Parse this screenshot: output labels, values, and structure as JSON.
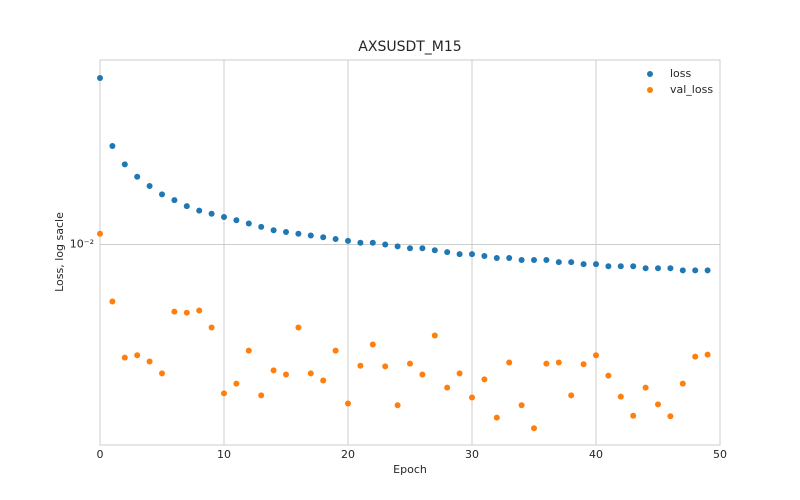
{
  "chart_data": {
    "type": "scatter",
    "title": "AXSUSDT_M15",
    "xlabel": "Epoch",
    "ylabel": "Loss, log sacle",
    "x": [
      0,
      1,
      2,
      3,
      4,
      5,
      6,
      7,
      8,
      9,
      10,
      11,
      12,
      13,
      14,
      15,
      16,
      17,
      18,
      19,
      20,
      21,
      22,
      23,
      24,
      25,
      26,
      27,
      28,
      29,
      30,
      31,
      32,
      33,
      34,
      35,
      36,
      37,
      38,
      39,
      40,
      41,
      42,
      43,
      44,
      45,
      46,
      47,
      48,
      49
    ],
    "series": [
      {
        "name": "loss",
        "color": "#1f77b4",
        "values": [
          0.0245,
          0.017,
          0.0154,
          0.0144,
          0.0137,
          0.0131,
          0.0127,
          0.0123,
          0.012,
          0.0118,
          0.0116,
          0.0114,
          0.0112,
          0.011,
          0.0108,
          0.0107,
          0.0106,
          0.0105,
          0.0104,
          0.0103,
          0.0102,
          0.0101,
          0.0101,
          0.01,
          0.0099,
          0.0098,
          0.0098,
          0.0097,
          0.0096,
          0.0095,
          0.0095,
          0.0094,
          0.0093,
          0.0093,
          0.0092,
          0.0092,
          0.0092,
          0.0091,
          0.0091,
          0.009,
          0.009,
          0.0089,
          0.0089,
          0.0089,
          0.0088,
          0.0088,
          0.0088,
          0.0087,
          0.0087,
          0.0087
        ]
      },
      {
        "name": "val_loss",
        "color": "#ff7f0e",
        "values": [
          0.0106,
          0.00736,
          0.00544,
          0.00551,
          0.00533,
          0.005,
          0.00697,
          0.00693,
          0.00701,
          0.0064,
          0.00449,
          0.00473,
          0.00565,
          0.00444,
          0.00508,
          0.00497,
          0.0064,
          0.005,
          0.00481,
          0.00565,
          0.00425,
          0.00521,
          0.00584,
          0.00519,
          0.00421,
          0.00527,
          0.00497,
          0.00613,
          0.00463,
          0.005,
          0.00439,
          0.00484,
          0.00394,
          0.0053,
          0.00421,
          0.00372,
          0.00527,
          0.0053,
          0.00444,
          0.00525,
          0.00551,
          0.00494,
          0.00441,
          0.00398,
          0.00463,
          0.00423,
          0.00397,
          0.00473,
          0.00547,
          0.00553
        ]
      }
    ],
    "xlim": [
      0,
      50
    ],
    "xticks": [
      0,
      10,
      20,
      30,
      40,
      50
    ],
    "ylim": [
      0.0034,
      0.027
    ],
    "yticks": [
      {
        "value": 0.01,
        "label": "10⁻²"
      }
    ],
    "yscale": "log",
    "grid": true,
    "legend": "upper right"
  }
}
